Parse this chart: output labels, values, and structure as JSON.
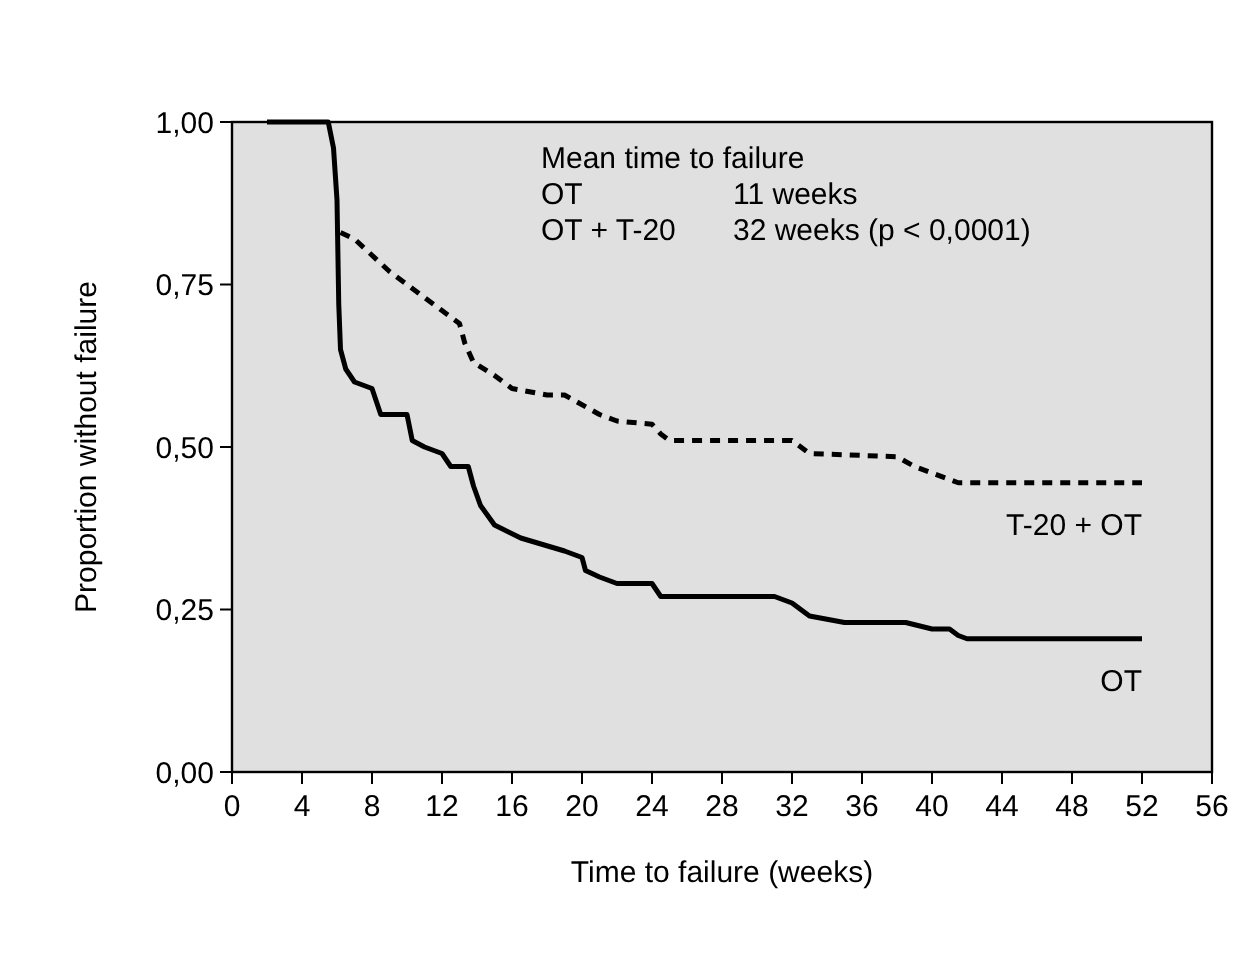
{
  "chart_data": {
    "type": "line",
    "xlabel": "Time to failure (weeks)",
    "ylabel": "Proportion without failure",
    "xlim": [
      0,
      56
    ],
    "xticks": [
      0,
      4,
      8,
      12,
      16,
      20,
      24,
      28,
      32,
      36,
      40,
      44,
      48,
      52,
      56
    ],
    "ylim": [
      0,
      1
    ],
    "yticks": [
      {
        "value": 0,
        "label": "0,00"
      },
      {
        "value": 0.25,
        "label": "0,25"
      },
      {
        "value": 0.5,
        "label": "0,50"
      },
      {
        "value": 0.75,
        "label": "0,75"
      },
      {
        "value": 1,
        "label": "1,00"
      }
    ],
    "grid": false,
    "annotations": [
      "Mean time to failure",
      "OT",
      "11 weeks",
      "OT + T-20",
      "32 weeks (p < 0,0001)"
    ],
    "series": [
      {
        "name": "OT",
        "color": "#000000",
        "line_style": "solid",
        "x": [
          2,
          5.5,
          5.8,
          6,
          6.1,
          6.2,
          6.5,
          7,
          8,
          8.5,
          10,
          10.3,
          11,
          12,
          12.5,
          13.5,
          13.8,
          14.2,
          15,
          16.5,
          19,
          20,
          20.2,
          21,
          22,
          24,
          24.5,
          31,
          32,
          33,
          35,
          38.5,
          40,
          41,
          41.5,
          42,
          52
        ],
        "values": [
          1,
          1,
          0.96,
          0.88,
          0.72,
          0.65,
          0.62,
          0.6,
          0.59,
          0.55,
          0.55,
          0.51,
          0.5,
          0.49,
          0.47,
          0.47,
          0.44,
          0.41,
          0.38,
          0.36,
          0.34,
          0.33,
          0.31,
          0.3,
          0.29,
          0.29,
          0.27,
          0.27,
          0.26,
          0.24,
          0.23,
          0.23,
          0.22,
          0.22,
          0.21,
          0.205,
          0.205
        ]
      },
      {
        "name": "T-20 + OT",
        "color": "#000000",
        "line_style": "dashed",
        "x": [
          6.2,
          7,
          9,
          11,
          12,
          13,
          13.3,
          13.8,
          15,
          16,
          18,
          19,
          21,
          22,
          24,
          24.5,
          25,
          32,
          33,
          38,
          39,
          40,
          41.5,
          52
        ],
        "values": [
          0.83,
          0.82,
          0.77,
          0.73,
          0.71,
          0.69,
          0.66,
          0.63,
          0.61,
          0.59,
          0.58,
          0.58,
          0.55,
          0.54,
          0.535,
          0.52,
          0.51,
          0.51,
          0.49,
          0.485,
          0.47,
          0.46,
          0.445,
          0.445
        ]
      }
    ]
  }
}
